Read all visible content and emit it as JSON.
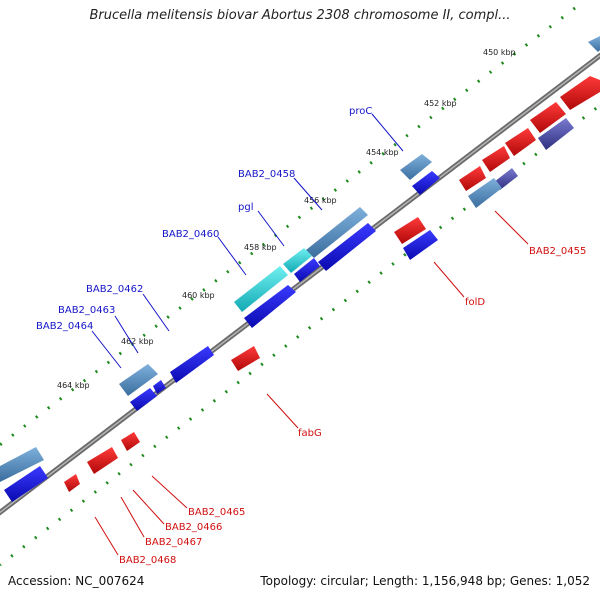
{
  "title": "Brucella melitensis biovar Abortus 2308 chromosome II, compl...",
  "footer": {
    "accession": "Accession: NC_007624",
    "topology": "Topology: circular; Length: 1,156,948 bp; Genes: 1,052"
  },
  "colors": {
    "backbone": "#888888",
    "tick_ring": "#1f8a1f",
    "forward_strand_gene": "#1a1ae0",
    "reverse_strand_gene": "#e01010",
    "forward_label": "#1515c8",
    "reverse_label": "#d01010",
    "operon_steelblue": "#4f86b8",
    "operon_cyan": "#1fc7cf",
    "operon_slate": "#5050a0"
  },
  "tick_labels": [
    "450 kbp",
    "452 kbp",
    "454 kbp",
    "456 kbp",
    "458 kbp",
    "460 kbp",
    "462 kbp",
    "464 kbp"
  ],
  "forward_labels": [
    "proC",
    "BAB2_0458",
    "pgl",
    "BAB2_0460",
    "BAB2_0462",
    "BAB2_0463",
    "BAB2_0464"
  ],
  "reverse_labels": [
    "BAB2_0455",
    "folD",
    "fabG",
    "BAB2_0465",
    "BAB2_0466",
    "BAB2_0467",
    "BAB2_0468"
  ]
}
